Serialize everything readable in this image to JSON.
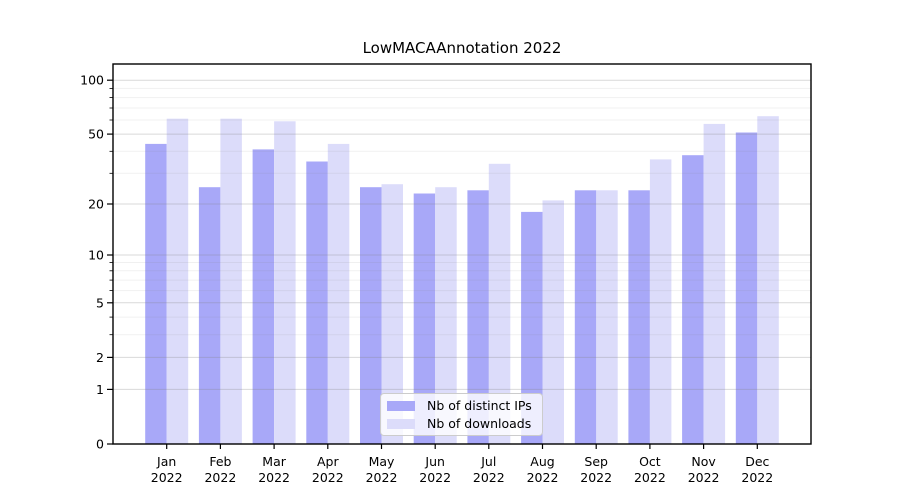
{
  "figure": {
    "title": "LowMACAAnnotation 2022"
  },
  "chart_data": {
    "type": "bar",
    "title": "LowMACAAnnotation 2022",
    "categories": [
      "Jan",
      "Feb",
      "Mar",
      "Apr",
      "May",
      "Jun",
      "Jul",
      "Aug",
      "Sep",
      "Oct",
      "Nov",
      "Dec"
    ],
    "x_tick_second_line": "2022",
    "series": [
      {
        "name": "Nb of distinct IPs",
        "color": "#a8a8f8",
        "values": [
          44,
          25,
          41,
          35,
          25,
          23,
          24,
          18,
          24,
          24,
          38,
          51
        ]
      },
      {
        "name": "Nb of downloads",
        "color": "#dcdcfa",
        "values": [
          61,
          61,
          59,
          44,
          26,
          25,
          34,
          21,
          24,
          36,
          57,
          63
        ]
      }
    ],
    "xlabel": "",
    "ylabel": "",
    "y_axis": {
      "scale": "log1p",
      "major_ticks": [
        0,
        1,
        2,
        5,
        10,
        20,
        50,
        100
      ],
      "tick_labels": [
        "0",
        "1",
        "2",
        "5",
        "10",
        "20",
        "50",
        "100"
      ],
      "minor_gridlines": [
        3,
        4,
        6,
        7,
        8,
        9,
        30,
        40,
        60,
        70,
        80,
        90
      ],
      "ylim": [
        0,
        123
      ]
    },
    "grid": true,
    "legend_position": "lower center",
    "colors": {
      "grid": "#808080",
      "spine": "#000000",
      "text": "#000000",
      "background": "#ffffff"
    }
  }
}
